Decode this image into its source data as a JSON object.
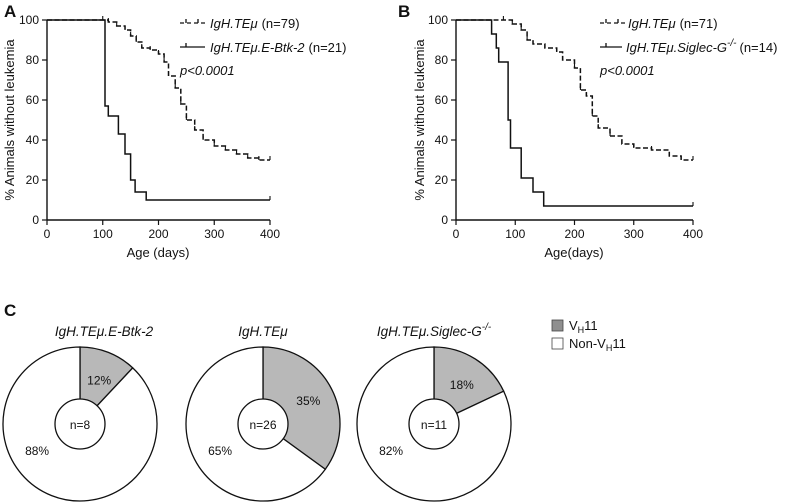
{
  "chart_data": [
    {
      "panel": "A",
      "type": "line",
      "subtype": "kaplan-meier",
      "xlabel": "Age (days)",
      "ylabel": "% Animals without leukemia",
      "xlim": [
        0,
        400
      ],
      "ylim": [
        0,
        100
      ],
      "xticks": [
        "0",
        "100",
        "200",
        "300",
        "400"
      ],
      "yticks": [
        "0",
        "20",
        "40",
        "60",
        "80",
        "100"
      ],
      "p_value": "p<0.0001",
      "legend_position": "top-right",
      "series": [
        {
          "name": "IgH.TEμ",
          "n_label": "(n=79)",
          "style": "dashed-censored",
          "points": [
            [
              0,
              100
            ],
            [
              100,
              100
            ],
            [
              110,
              99
            ],
            [
              125,
              97
            ],
            [
              140,
              95
            ],
            [
              150,
              92
            ],
            [
              160,
              89
            ],
            [
              170,
              86
            ],
            [
              185,
              85
            ],
            [
              200,
              83
            ],
            [
              210,
              79
            ],
            [
              218,
              72
            ],
            [
              230,
              66
            ],
            [
              240,
              58
            ],
            [
              250,
              50
            ],
            [
              265,
              45
            ],
            [
              280,
              40
            ],
            [
              300,
              37
            ],
            [
              320,
              35
            ],
            [
              340,
              33
            ],
            [
              360,
              31
            ],
            [
              380,
              30
            ],
            [
              400,
              30
            ]
          ]
        },
        {
          "name": "IgH.TEμ.E-Btk-2",
          "n_label": "(n=21)",
          "style": "solid",
          "points": [
            [
              0,
              100
            ],
            [
              104,
              100
            ],
            [
              104,
              57
            ],
            [
              110,
              57
            ],
            [
              110,
              52
            ],
            [
              128,
              52
            ],
            [
              128,
              43
            ],
            [
              140,
              43
            ],
            [
              140,
              33
            ],
            [
              150,
              33
            ],
            [
              150,
              20
            ],
            [
              158,
              20
            ],
            [
              158,
              14
            ],
            [
              178,
              14
            ],
            [
              178,
              10
            ],
            [
              400,
              10
            ]
          ]
        }
      ]
    },
    {
      "panel": "B",
      "type": "line",
      "subtype": "kaplan-meier",
      "xlabel": "Age(days)",
      "ylabel": "% Animals without leukemia",
      "xlim": [
        0,
        400
      ],
      "ylim": [
        0,
        100
      ],
      "xticks": [
        "0",
        "100",
        "200",
        "300",
        "400"
      ],
      "yticks": [
        "0",
        "20",
        "40",
        "60",
        "80",
        "100"
      ],
      "p_value": "p<0.0001",
      "legend_position": "top-right",
      "series": [
        {
          "name": "IgH.TEμ",
          "n_label": "(n=71)",
          "style": "dashed-censored",
          "points": [
            [
              0,
              100
            ],
            [
              80,
              100
            ],
            [
              95,
              98
            ],
            [
              110,
              95
            ],
            [
              120,
              90
            ],
            [
              130,
              88
            ],
            [
              150,
              86
            ],
            [
              170,
              84
            ],
            [
              180,
              80
            ],
            [
              200,
              76
            ],
            [
              210,
              65
            ],
            [
              220,
              62
            ],
            [
              230,
              52
            ],
            [
              240,
              46
            ],
            [
              260,
              42
            ],
            [
              280,
              38
            ],
            [
              300,
              36
            ],
            [
              330,
              35
            ],
            [
              360,
              32
            ],
            [
              380,
              30
            ],
            [
              400,
              30
            ]
          ]
        },
        {
          "name": "IgH.TEμ.Siglec-G",
          "superscript": "-/-",
          "n_label": "(n=14)",
          "style": "solid",
          "points": [
            [
              0,
              100
            ],
            [
              60,
              100
            ],
            [
              60,
              93
            ],
            [
              68,
              93
            ],
            [
              68,
              86
            ],
            [
              72,
              86
            ],
            [
              72,
              79
            ],
            [
              88,
              79
            ],
            [
              88,
              50
            ],
            [
              92,
              50
            ],
            [
              92,
              36
            ],
            [
              110,
              36
            ],
            [
              110,
              21
            ],
            [
              130,
              21
            ],
            [
              130,
              14
            ],
            [
              148,
              14
            ],
            [
              148,
              7
            ],
            [
              400,
              7
            ]
          ]
        }
      ]
    },
    {
      "panel": "C",
      "type": "pie",
      "style": "donut",
      "legend": {
        "vh11": {
          "main": "V",
          "sub": "H",
          "tail": "11",
          "color": "#b8b8b8"
        },
        "non_vh11": {
          "main": "Non-V",
          "sub": "H",
          "tail": "11",
          "color": "#ffffff"
        }
      },
      "pies": [
        {
          "title": "IgH.TEμ.E-Btk-2",
          "center": "n=8",
          "slices": [
            {
              "label": "12%",
              "value": 12,
              "category": "VH11"
            },
            {
              "label": "88%",
              "value": 88,
              "category": "Non-VH11"
            }
          ]
        },
        {
          "title": "IgH.TEμ",
          "center": "n=26",
          "slices": [
            {
              "label": "35%",
              "value": 35,
              "category": "VH11"
            },
            {
              "label": "65%",
              "value": 65,
              "category": "Non-VH11"
            }
          ]
        },
        {
          "title": "IgH.TEμ.Siglec-G",
          "title_sup": "-/-",
          "center": "n=11",
          "slices": [
            {
              "label": "18%",
              "value": 18,
              "category": "VH11"
            },
            {
              "label": "82%",
              "value": 82,
              "category": "Non-VH11"
            }
          ]
        }
      ]
    }
  ],
  "colors": {
    "line": "#111111",
    "vh11": "#b8b8b8",
    "non_vh11": "#ffffff"
  }
}
